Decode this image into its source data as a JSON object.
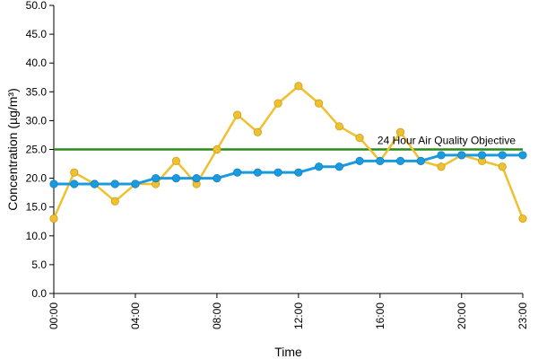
{
  "chart_data": {
    "type": "line",
    "title": "",
    "xlabel": "Time",
    "ylabel": "Concentration (µg/m³)",
    "ylim": [
      0,
      50
    ],
    "yticks": [
      "0.0",
      "5.0",
      "10.0",
      "15.0",
      "20.0",
      "25.0",
      "30.0",
      "35.0",
      "40.0",
      "45.0",
      "50.0"
    ],
    "xlim": [
      0,
      23
    ],
    "xtick_values": [
      0,
      4,
      8,
      12,
      16,
      20,
      23
    ],
    "xtick_labels": [
      "00:00",
      "04:00",
      "08:00",
      "12:00",
      "16:00",
      "20:00",
      "23:00"
    ],
    "grid": false,
    "x": [
      0,
      1,
      2,
      3,
      4,
      5,
      6,
      7,
      8,
      9,
      10,
      11,
      12,
      13,
      14,
      15,
      16,
      17,
      18,
      19,
      20,
      21,
      22,
      23
    ],
    "series": [
      {
        "color": "#f0c030",
        "marker": "circle",
        "values": [
          13,
          21,
          19,
          16,
          19,
          19,
          23,
          19,
          25,
          31,
          28,
          33,
          36,
          33,
          29,
          27,
          23,
          28,
          23,
          22,
          24,
          23,
          22,
          13
        ]
      },
      {
        "color": "#1a9be0",
        "marker": "circle",
        "values": [
          19,
          19,
          19,
          19,
          19,
          20,
          20,
          20,
          20,
          21,
          21,
          21,
          21,
          22,
          22,
          23,
          23,
          23,
          23,
          24,
          24,
          24,
          24,
          24
        ]
      }
    ],
    "reference_line": {
      "label": "24 Hour Air Quality Objective",
      "value": 25,
      "color": "#2a8a1a"
    }
  }
}
